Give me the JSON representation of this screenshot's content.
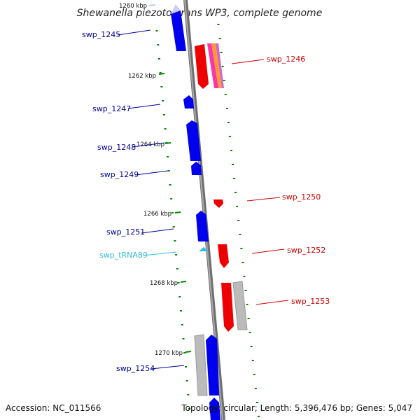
{
  "title": "Shewanella piezotolerans WP3, complete genome",
  "footer": {
    "accession": "Accession: NC_011566",
    "summary": "Topology: circular; Length: 5,396,476 bp; Genes: 5,047"
  },
  "colors": {
    "forward_cds": "#ff0000",
    "reverse_cds": "#0000ff",
    "rna": "#33bbee",
    "pseudo": "#bbbbbb",
    "backbone": "#888888",
    "ticks": "#008800",
    "label_forward": "#cc0000",
    "label_reverse": "#000099",
    "label_rna": "#33bbdd"
  },
  "scale_labels": [
    "1260 kbp",
    "1262 kbp",
    "1264 kbp",
    "1266 kbp",
    "1268 kbp",
    "1270 kbp"
  ],
  "genes": [
    {
      "label": "swp_1245",
      "strand": "reverse"
    },
    {
      "label": "swp_1246",
      "strand": "forward"
    },
    {
      "label": "swp_1247",
      "strand": "reverse"
    },
    {
      "label": "swp_1248",
      "strand": "reverse"
    },
    {
      "label": "swp_1249",
      "strand": "reverse"
    },
    {
      "label": "swp_1250",
      "strand": "forward"
    },
    {
      "label": "swp_1251",
      "strand": "reverse"
    },
    {
      "label": "swp_tRNA89",
      "strand": "rna"
    },
    {
      "label": "swp_1252",
      "strand": "forward"
    },
    {
      "label": "swp_1253",
      "strand": "forward"
    },
    {
      "label": "swp_1254",
      "strand": "reverse"
    }
  ]
}
